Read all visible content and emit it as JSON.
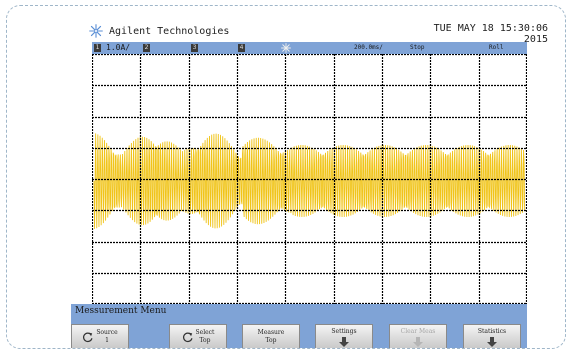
{
  "header": {
    "brand_icon": "agilent-spark-icon",
    "brand": "Agilent Technologies",
    "datetime": "TUE MAY 18 15:30:06 2015"
  },
  "statusbar": {
    "ch1_num": "1",
    "ch1_scale": "1.0A/",
    "ch2_num": "2",
    "ch3_num": "3",
    "ch4_num": "4",
    "trigger_icon": "agilent-spark-icon",
    "timebase": "200.0ms/",
    "run_state": "Stop",
    "mode": "Roll"
  },
  "scope": {
    "trace_color": "#f0c419",
    "grid_color": "#000000",
    "h_divisions": 9,
    "v_divisions": 8
  },
  "menu": {
    "title": "Messurement Menu",
    "source_line1": "Source",
    "source_line2": "1",
    "select_line1": "Select",
    "select_line2": "Top",
    "measure_line1": "Measure",
    "measure_line2": "Top",
    "settings": "Settings",
    "clear_meas": "Clear Meas",
    "statistics": "Statistics"
  }
}
